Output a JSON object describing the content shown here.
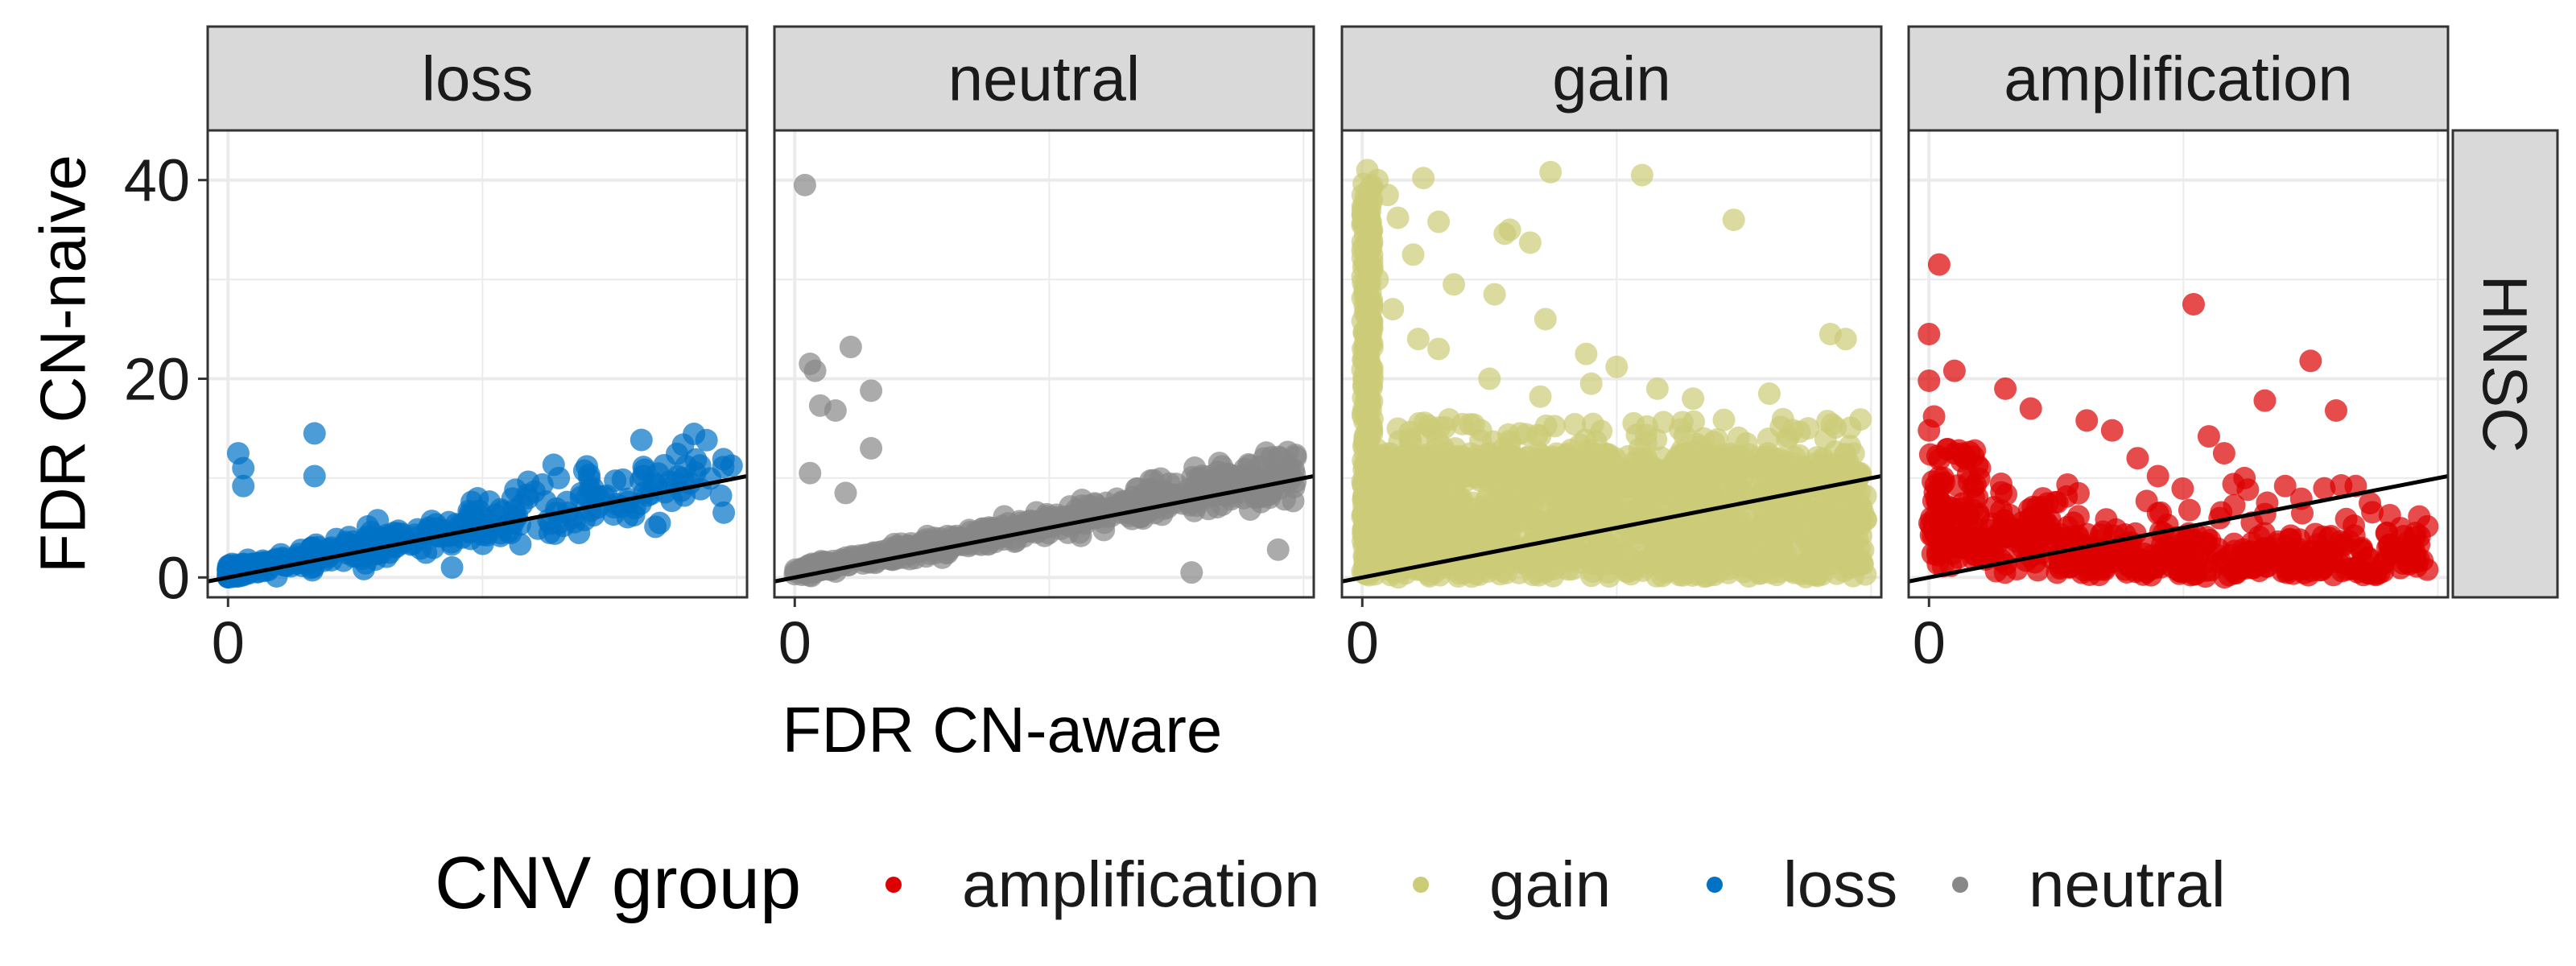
{
  "chart_data": {
    "type": "scatter",
    "facet_row": "HNSC",
    "panels": [
      {
        "name": "loss",
        "color": "#0072C6",
        "slope": 1.0,
        "x_max": 0.99,
        "y_base": 1.0,
        "y_noise": 0.18,
        "y_mult_noise": 0.25,
        "n": 420,
        "outliers": [
          [
            0.02,
            12.5
          ],
          [
            0.03,
            11.0
          ],
          [
            0.03,
            9.2
          ],
          [
            0.17,
            14.5
          ],
          [
            0.17,
            10.2
          ],
          [
            0.65,
            10.0
          ],
          [
            0.88,
            9.5
          ],
          [
            0.9,
            11.2
          ]
        ]
      },
      {
        "name": "neutral",
        "color": "#888888",
        "slope": 1.0,
        "x_max": 0.99,
        "y_base": 1.0,
        "y_noise": 0.12,
        "y_mult_noise": 0.12,
        "n": 600,
        "outliers": [
          [
            0.02,
            39.5
          ],
          [
            0.03,
            21.5
          ],
          [
            0.04,
            20.8
          ],
          [
            0.11,
            23.2
          ],
          [
            0.05,
            17.3
          ],
          [
            0.08,
            16.8
          ],
          [
            0.15,
            18.8
          ],
          [
            0.15,
            13.0
          ],
          [
            0.03,
            10.5
          ],
          [
            0.1,
            8.5
          ],
          [
            0.78,
            0.5
          ],
          [
            0.95,
            2.8
          ]
        ]
      },
      {
        "name": "gain",
        "color": "#CCCC77",
        "slope": 1.0,
        "x_max": 0.99,
        "y_base": 1.0,
        "y_noise": 0.0,
        "y_mult_noise": 0.0,
        "n": 1400,
        "uniform_max": 12.5,
        "outliers": [
          [
            0.01,
            41.0
          ],
          [
            0.03,
            40.0
          ],
          [
            0.12,
            40.2
          ],
          [
            0.37,
            40.8
          ],
          [
            0.55,
            40.5
          ],
          [
            0.07,
            36.2
          ],
          [
            0.15,
            35.8
          ],
          [
            0.29,
            35.0
          ],
          [
            0.28,
            34.6
          ],
          [
            0.33,
            33.7
          ],
          [
            0.73,
            36.0
          ],
          [
            0.05,
            38.5
          ],
          [
            0.0,
            35.5
          ],
          [
            0.1,
            32.5
          ],
          [
            0.18,
            29.5
          ],
          [
            0.26,
            28.5
          ],
          [
            0.36,
            26.0
          ],
          [
            0.44,
            22.5
          ],
          [
            0.5,
            21.2
          ],
          [
            0.03,
            30.0
          ],
          [
            0.06,
            27.0
          ],
          [
            0.11,
            24.0
          ],
          [
            0.15,
            23.0
          ],
          [
            0.92,
            24.5
          ],
          [
            0.95,
            24.0
          ],
          [
            0.45,
            19.5
          ],
          [
            0.35,
            18.2
          ],
          [
            0.25,
            20.0
          ],
          [
            0.02,
            20.0
          ],
          [
            0.58,
            19.0
          ],
          [
            0.65,
            18.0
          ],
          [
            0.8,
            18.5
          ]
        ]
      },
      {
        "name": "amplification",
        "color": "#DD0000",
        "slope": 1.0,
        "x_max": 0.99,
        "y_base": 0.0,
        "y_noise": 0.0,
        "y_mult_noise": 0.0,
        "n": 0,
        "outliers": []
      }
    ],
    "xlabel": "FDR CN-aware",
    "ylabel": "FDR CN-naive",
    "x_ticks": [
      0
    ],
    "y_ticks": [
      0,
      20,
      40
    ],
    "xlim": [
      -0.04,
      1.02
    ],
    "ylim": [
      -2,
      45
    ],
    "grid": true,
    "reference_line": {
      "type": "abline",
      "slope": 10,
      "intercept": 0,
      "color": "#000000"
    },
    "legend": {
      "title": "CNV group",
      "position": "bottom",
      "items": [
        {
          "label": "amplification",
          "color": "#DD0000"
        },
        {
          "label": "gain",
          "color": "#CCCC77"
        },
        {
          "label": "loss",
          "color": "#0072C6"
        },
        {
          "label": "neutral",
          "color": "#888888"
        }
      ]
    }
  }
}
